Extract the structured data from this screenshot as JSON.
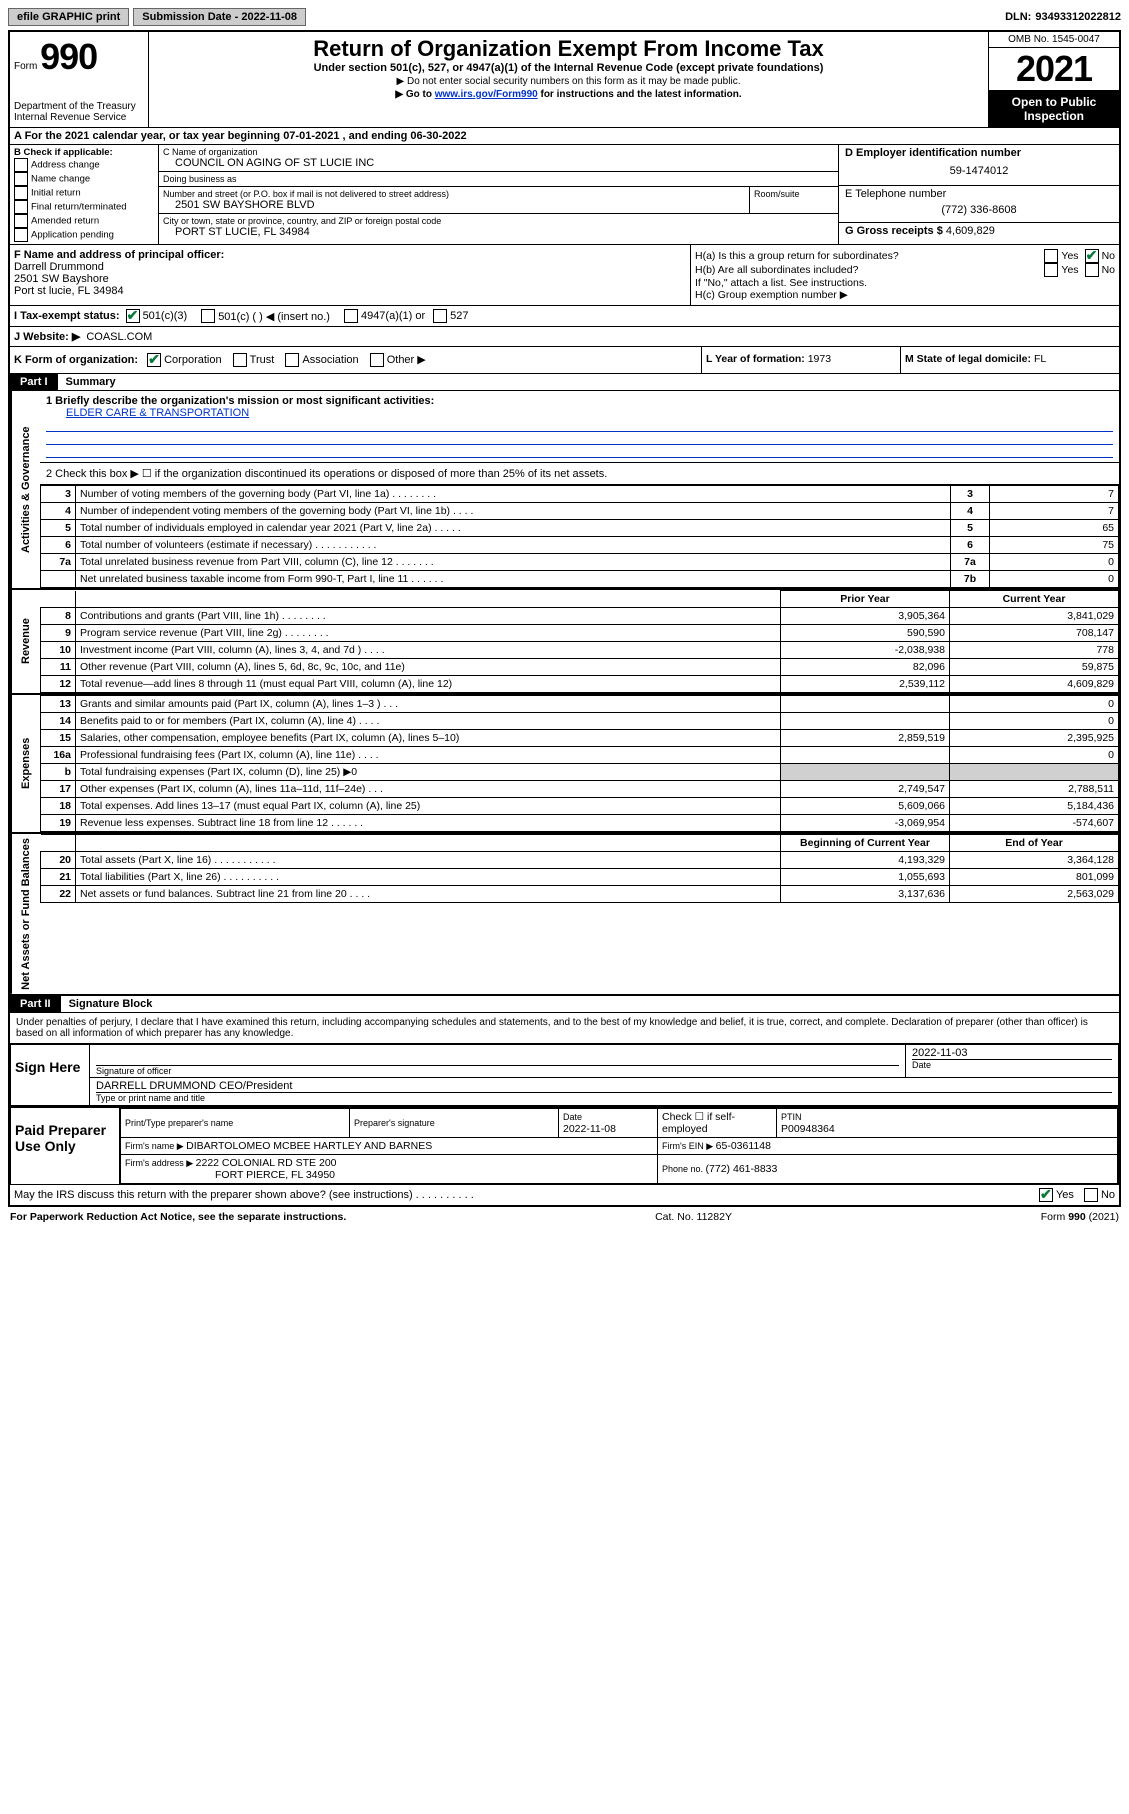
{
  "topbar": {
    "efile": "efile GRAPHIC print",
    "submission_label": "Submission Date - ",
    "submission_date": "2022-11-08",
    "dln_label": "DLN: ",
    "dln": "93493312022812"
  },
  "header": {
    "form_word": "Form",
    "form_no": "990",
    "dept": "Department of the Treasury",
    "irs": "Internal Revenue Service",
    "title": "Return of Organization Exempt From Income Tax",
    "subtitle": "Under section 501(c), 527, or 4947(a)(1) of the Internal Revenue Code (except private foundations)",
    "note1": "▶ Do not enter social security numbers on this form as it may be made public.",
    "note2_pre": "▶ Go to ",
    "note2_link": "www.irs.gov/Form990",
    "note2_post": " for instructions and the latest information.",
    "omb": "OMB No. 1545-0047",
    "year": "2021",
    "open": "Open to Public Inspection"
  },
  "rowA": {
    "text": "A For the 2021 calendar year, or tax year beginning 07-01-2021   , and ending 06-30-2022"
  },
  "colB": {
    "hdr": "B Check if applicable:",
    "opts": [
      "Address change",
      "Name change",
      "Initial return",
      "Final return/terminated",
      "Amended return",
      "Application pending"
    ]
  },
  "colC": {
    "name_lbl": "C Name of organization",
    "name": "COUNCIL ON AGING OF ST LUCIE INC",
    "dba_lbl": "Doing business as",
    "dba": "",
    "addr_lbl": "Number and street (or P.O. box if mail is not delivered to street address)",
    "room_lbl": "Room/suite",
    "addr": "2501 SW BAYSHORE BLVD",
    "city_lbl": "City or town, state or province, country, and ZIP or foreign postal code",
    "city": "PORT ST LUCIE, FL  34984"
  },
  "colD": {
    "ein_lbl": "D Employer identification number",
    "ein": "59-1474012",
    "phone_lbl": "E Telephone number",
    "phone": "(772) 336-8608",
    "gross_lbl": "G Gross receipts $ ",
    "gross": "4,609,829"
  },
  "secF": {
    "lbl": "F Name and address of principal officer:",
    "name": "Darrell Drummond",
    "addr1": "2501 SW Bayshore",
    "addr2": "Port st lucie, FL  34984"
  },
  "secH": {
    "ha": "H(a)  Is this a group return for subordinates?",
    "hb": "H(b)  Are all subordinates included?",
    "hb_note": "If \"No,\" attach a list. See instructions.",
    "hc": "H(c)  Group exemption number ▶",
    "yes": "Yes",
    "no": "No"
  },
  "rowI": {
    "lbl": "I    Tax-exempt status:",
    "o1": "501(c)(3)",
    "o2": "501(c) (  ) ◀ (insert no.)",
    "o3": "4947(a)(1) or",
    "o4": "527"
  },
  "rowJ": {
    "lbl": "J    Website: ▶ ",
    "val": "COASL.COM"
  },
  "rowK": {
    "lbl": "K Form of organization:",
    "o1": "Corporation",
    "o2": "Trust",
    "o3": "Association",
    "o4": "Other ▶",
    "l_lbl": "L Year of formation: ",
    "l_val": "1973",
    "m_lbl": "M State of legal domicile: ",
    "m_val": "FL"
  },
  "part1": {
    "hdr": "Part I",
    "title": "Summary",
    "q1": "1   Briefly describe the organization's mission or most significant activities:",
    "mission": "ELDER CARE & TRANSPORTATION",
    "q2": "2   Check this box ▶ ☐  if the organization discontinued its operations or disposed of more than 25% of its net assets."
  },
  "sideLabels": {
    "gov": "Activities & Governance",
    "rev": "Revenue",
    "exp": "Expenses",
    "net": "Net Assets or Fund Balances"
  },
  "govRows": [
    {
      "n": "3",
      "d": "Number of voting members of the governing body (Part VI, line 1a)   .   .   .   .   .   .   .   .",
      "b": "3",
      "v": "7"
    },
    {
      "n": "4",
      "d": "Number of independent voting members of the governing body (Part VI, line 1b)    .   .   .   .",
      "b": "4",
      "v": "7"
    },
    {
      "n": "5",
      "d": "Total number of individuals employed in calendar year 2021 (Part V, line 2a)   .   .   .   .   .",
      "b": "5",
      "v": "65"
    },
    {
      "n": "6",
      "d": "Total number of volunteers (estimate if necessary)   .   .   .   .   .   .   .   .   .   .   .",
      "b": "6",
      "v": "75"
    },
    {
      "n": "7a",
      "d": "Total unrelated business revenue from Part VIII, column (C), line 12   .   .   .   .   .   .   .",
      "b": "7a",
      "v": "0"
    },
    {
      "n": "",
      "d": "Net unrelated business taxable income from Form 990-T, Part I, line 11   .   .   .   .   .   .",
      "b": "7b",
      "v": "0"
    }
  ],
  "twoColHdr": {
    "prior": "Prior Year",
    "curr": "Current Year"
  },
  "revRows": [
    {
      "n": "8",
      "d": "Contributions and grants (Part VIII, line 1h)   .   .   .   .   .   .   .   .",
      "p": "3,905,364",
      "c": "3,841,029"
    },
    {
      "n": "9",
      "d": "Program service revenue (Part VIII, line 2g)   .   .   .   .   .   .   .   .",
      "p": "590,590",
      "c": "708,147"
    },
    {
      "n": "10",
      "d": "Investment income (Part VIII, column (A), lines 3, 4, and 7d )   .   .   .   .",
      "p": "-2,038,938",
      "c": "778"
    },
    {
      "n": "11",
      "d": "Other revenue (Part VIII, column (A), lines 5, 6d, 8c, 9c, 10c, and 11e)",
      "p": "82,096",
      "c": "59,875"
    },
    {
      "n": "12",
      "d": "Total revenue—add lines 8 through 11 (must equal Part VIII, column (A), line 12)",
      "p": "2,539,112",
      "c": "4,609,829"
    }
  ],
  "expRows": [
    {
      "n": "13",
      "d": "Grants and similar amounts paid (Part IX, column (A), lines 1–3 )   .   .   .",
      "p": "",
      "c": "0"
    },
    {
      "n": "14",
      "d": "Benefits paid to or for members (Part IX, column (A), line 4)   .   .   .   .",
      "p": "",
      "c": "0"
    },
    {
      "n": "15",
      "d": "Salaries, other compensation, employee benefits (Part IX, column (A), lines 5–10)",
      "p": "2,859,519",
      "c": "2,395,925"
    },
    {
      "n": "16a",
      "d": "Professional fundraising fees (Part IX, column (A), line 11e)   .   .   .   .",
      "p": "",
      "c": "0"
    },
    {
      "n": "b",
      "d": "Total fundraising expenses (Part IX, column (D), line 25) ▶0",
      "p": "shade",
      "c": "shade"
    },
    {
      "n": "17",
      "d": "Other expenses (Part IX, column (A), lines 11a–11d, 11f–24e)   .   .   .",
      "p": "2,749,547",
      "c": "2,788,511"
    },
    {
      "n": "18",
      "d": "Total expenses. Add lines 13–17 (must equal Part IX, column (A), line 25)",
      "p": "5,609,066",
      "c": "5,184,436"
    },
    {
      "n": "19",
      "d": "Revenue less expenses. Subtract line 18 from line 12   .   .   .   .   .   .",
      "p": "-3,069,954",
      "c": "-574,607"
    }
  ],
  "netHdr": {
    "beg": "Beginning of Current Year",
    "end": "End of Year"
  },
  "netRows": [
    {
      "n": "20",
      "d": "Total assets (Part X, line 16)   .   .   .   .   .   .   .   .   .   .   .",
      "p": "4,193,329",
      "c": "3,364,128"
    },
    {
      "n": "21",
      "d": "Total liabilities (Part X, line 26)   .   .   .   .   .   .   .   .   .   .",
      "p": "1,055,693",
      "c": "801,099"
    },
    {
      "n": "22",
      "d": "Net assets or fund balances. Subtract line 21 from line 20   .   .   .   .",
      "p": "3,137,636",
      "c": "2,563,029"
    }
  ],
  "part2": {
    "hdr": "Part II",
    "title": "Signature Block",
    "decl": "Under penalties of perjury, I declare that I have examined this return, including accompanying schedules and statements, and to the best of my knowledge and belief, it is true, correct, and complete. Declaration of preparer (other than officer) is based on all information of which preparer has any knowledge."
  },
  "sign": {
    "label": "Sign Here",
    "sig_lbl": "Signature of officer",
    "date_lbl": "Date",
    "date": "2022-11-03",
    "officer": "DARRELL DRUMMOND CEO/President",
    "officer_lbl": "Type or print name and title"
  },
  "preparer": {
    "label": "Paid Preparer Use Only",
    "name_lbl": "Print/Type preparer's name",
    "sig_lbl": "Preparer's signature",
    "date_lbl": "Date",
    "date": "2022-11-08",
    "check_lbl": "Check ☐ if self-employed",
    "ptin_lbl": "PTIN",
    "ptin": "P00948364",
    "firm_name_lbl": "Firm's name    ▶ ",
    "firm_name": "DIBARTOLOMEO MCBEE HARTLEY AND BARNES",
    "firm_ein_lbl": "Firm's EIN ▶ ",
    "firm_ein": "65-0361148",
    "firm_addr_lbl": "Firm's address ▶ ",
    "firm_addr1": "2222 COLONIAL RD STE 200",
    "firm_addr2": "FORT PIERCE, FL  34950",
    "phone_lbl": "Phone no. ",
    "phone": "(772) 461-8833"
  },
  "discuss": {
    "q": "May the IRS discuss this return with the preparer shown above? (see instructions)   .   .   .   .   .   .   .   .   .   .",
    "yes": "Yes",
    "no": "No"
  },
  "footer": {
    "left": "For Paperwork Reduction Act Notice, see the separate instructions.",
    "mid": "Cat. No. 11282Y",
    "right": "Form 990 (2021)"
  }
}
